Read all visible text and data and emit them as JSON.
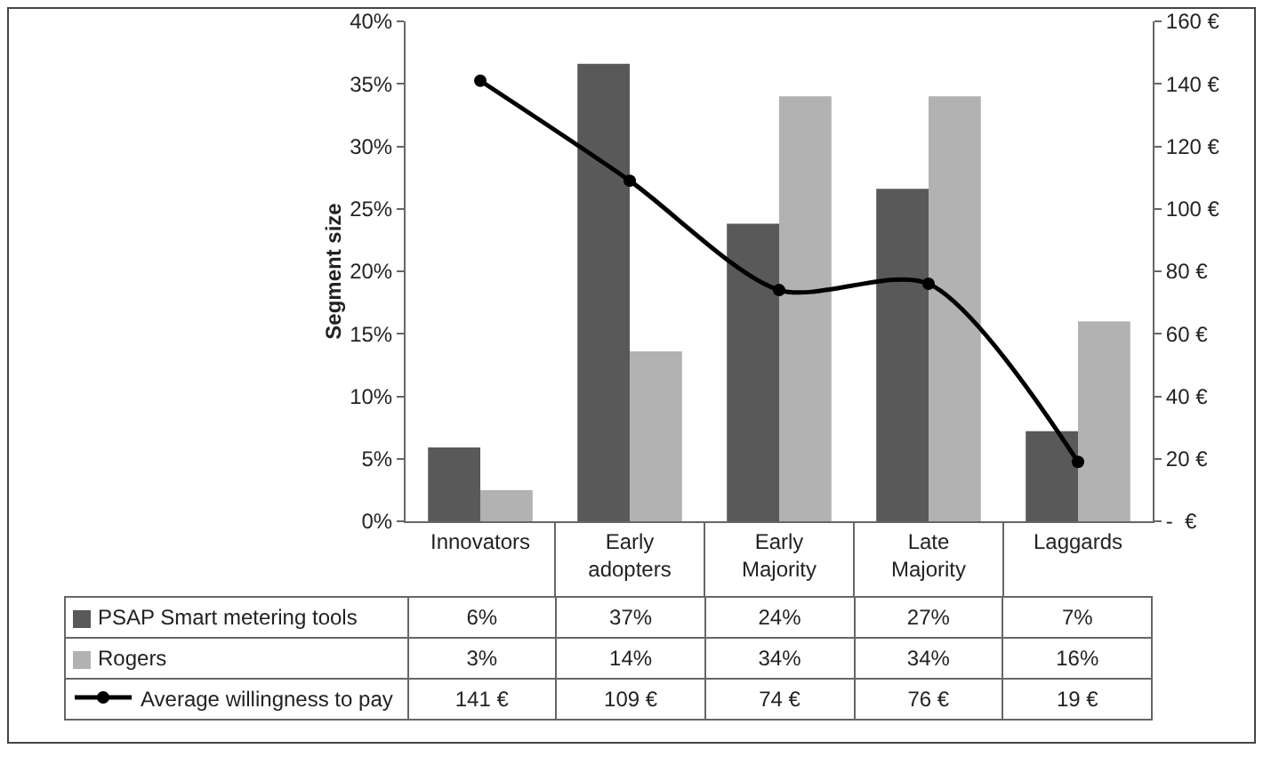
{
  "chart_data": {
    "type": "bar",
    "ylabel": "Segment size",
    "categories": [
      "Innovators",
      "Early adopters",
      "Early Majority",
      "Late Majority",
      "Laggards"
    ],
    "series": [
      {
        "name": "PSAP Smart metering tools",
        "color": "#595959",
        "values": [
          5.9,
          36.6,
          23.8,
          26.6,
          7.2
        ],
        "value_labels": [
          "6%",
          "37%",
          "24%",
          "27%",
          "7%"
        ]
      },
      {
        "name": "Rogers",
        "color": "#b2b2b2",
        "values": [
          2.5,
          13.6,
          34,
          34,
          16
        ],
        "value_labels": [
          "3%",
          "14%",
          "34%",
          "34%",
          "16%"
        ]
      },
      {
        "name": "Average willingness to pay",
        "type": "line",
        "axis": "y2",
        "color": "#000000",
        "values": [
          141,
          109,
          74,
          76,
          19
        ],
        "value_labels": [
          "141 €",
          "109 €",
          "74 €",
          "76 €",
          "19 €"
        ]
      }
    ],
    "ylim": [
      0,
      40
    ],
    "yticks": [
      {
        "value": 0,
        "label": "0%"
      },
      {
        "value": 5,
        "label": "5%"
      },
      {
        "value": 10,
        "label": "10%"
      },
      {
        "value": 15,
        "label": "15%"
      },
      {
        "value": 20,
        "label": "20%"
      },
      {
        "value": 25,
        "label": "25%"
      },
      {
        "value": 30,
        "label": "30%"
      },
      {
        "value": 35,
        "label": "35%"
      },
      {
        "value": 40,
        "label": "40%"
      }
    ],
    "y2lim": [
      0,
      160
    ],
    "y2ticks": [
      {
        "value": 0,
        "label": "-  €"
      },
      {
        "value": 20,
        "label": "20 €"
      },
      {
        "value": 40,
        "label": "40 €"
      },
      {
        "value": 60,
        "label": "60 €"
      },
      {
        "value": 80,
        "label": "80 €"
      },
      {
        "value": 100,
        "label": "100 €"
      },
      {
        "value": 120,
        "label": "120 €"
      },
      {
        "value": 140,
        "label": "140 €"
      },
      {
        "value": 160,
        "label": "160 €"
      }
    ],
    "grid": false,
    "legend": "bottom",
    "marker": "circle",
    "line_style": "solid"
  }
}
